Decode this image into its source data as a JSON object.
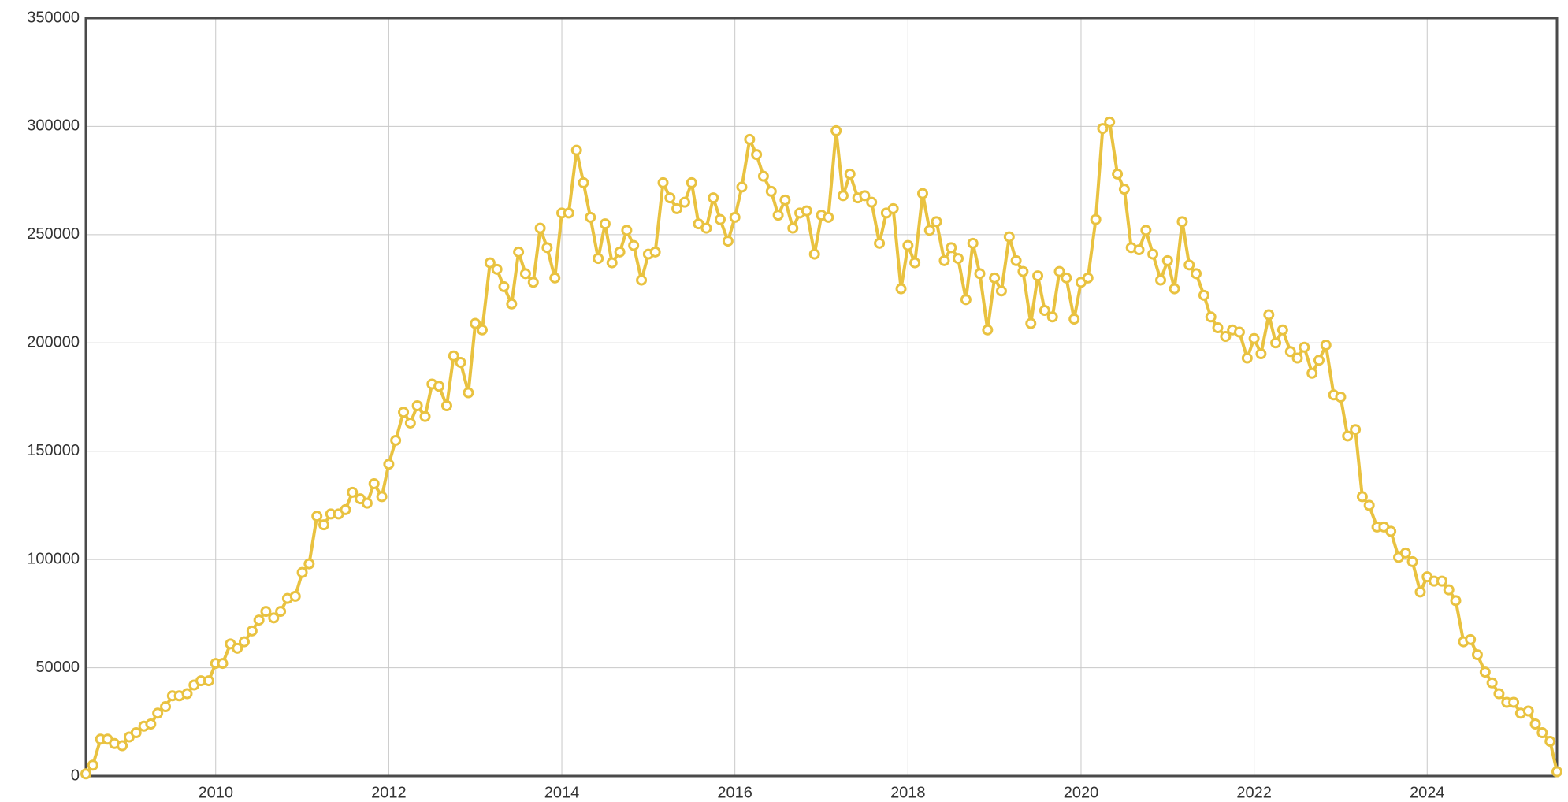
{
  "chart_data": {
    "type": "line",
    "x": [
      2008.5,
      2008.58,
      2008.67,
      2008.75,
      2008.83,
      2008.92,
      2009,
      2009.08,
      2009.17,
      2009.25,
      2009.33,
      2009.42,
      2009.5,
      2009.58,
      2009.67,
      2009.75,
      2009.83,
      2009.92,
      2010,
      2010.08,
      2010.17,
      2010.25,
      2010.33,
      2010.42,
      2010.5,
      2010.58,
      2010.67,
      2010.75,
      2010.83,
      2010.92,
      2011,
      2011.08,
      2011.17,
      2011.25,
      2011.33,
      2011.42,
      2011.5,
      2011.58,
      2011.67,
      2011.75,
      2011.83,
      2011.92,
      2012,
      2012.08,
      2012.17,
      2012.25,
      2012.33,
      2012.42,
      2012.5,
      2012.58,
      2012.67,
      2012.75,
      2012.83,
      2012.92,
      2013,
      2013.08,
      2013.17,
      2013.25,
      2013.33,
      2013.42,
      2013.5,
      2013.58,
      2013.67,
      2013.75,
      2013.83,
      2013.92,
      2014,
      2014.08,
      2014.17,
      2014.25,
      2014.33,
      2014.42,
      2014.5,
      2014.58,
      2014.67,
      2014.75,
      2014.83,
      2014.92,
      2015,
      2015.08,
      2015.17,
      2015.25,
      2015.33,
      2015.42,
      2015.5,
      2015.58,
      2015.67,
      2015.75,
      2015.83,
      2015.92,
      2016,
      2016.08,
      2016.17,
      2016.25,
      2016.33,
      2016.42,
      2016.5,
      2016.58,
      2016.67,
      2016.75,
      2016.83,
      2016.92,
      2017,
      2017.08,
      2017.17,
      2017.25,
      2017.33,
      2017.42,
      2017.5,
      2017.58,
      2017.67,
      2017.75,
      2017.83,
      2017.92,
      2018,
      2018.08,
      2018.17,
      2018.25,
      2018.33,
      2018.42,
      2018.5,
      2018.58,
      2018.67,
      2018.75,
      2018.83,
      2018.92,
      2019,
      2019.08,
      2019.17,
      2019.25,
      2019.33,
      2019.42,
      2019.5,
      2019.58,
      2019.67,
      2019.75,
      2019.83,
      2019.92,
      2020,
      2020.08,
      2020.17,
      2020.25,
      2020.33,
      2020.42,
      2020.5,
      2020.58,
      2020.67,
      2020.75,
      2020.83,
      2020.92,
      2021,
      2021.08,
      2021.17,
      2021.25,
      2021.33,
      2021.42,
      2021.5,
      2021.58,
      2021.67,
      2021.75,
      2021.83,
      2021.92,
      2022,
      2022.08,
      2022.17,
      2022.25,
      2022.33,
      2022.42,
      2022.5,
      2022.58,
      2022.67,
      2022.75,
      2022.83,
      2022.92,
      2023,
      2023.08,
      2023.17,
      2023.25,
      2023.33,
      2023.42,
      2023.5,
      2023.58,
      2023.67,
      2023.75,
      2023.83,
      2023.92,
      2024,
      2024.08,
      2024.17,
      2024.25,
      2024.33,
      2024.42,
      2024.5,
      2024.58,
      2024.67,
      2024.75,
      2024.83,
      2024.92,
      2025,
      2025.08,
      2025.17,
      2025.25,
      2025.33,
      2025.42,
      2025.5
    ],
    "series": [
      {
        "color": "#e9c240",
        "values": [
          1000,
          5000,
          17000,
          17000,
          15000,
          14000,
          18000,
          20000,
          23000,
          24000,
          29000,
          32000,
          37000,
          37000,
          38000,
          42000,
          44000,
          44000,
          52000,
          52000,
          61000,
          59000,
          62000,
          67000,
          72000,
          76000,
          73000,
          76000,
          82000,
          83000,
          94000,
          98000,
          120000,
          116000,
          121000,
          121000,
          123000,
          131000,
          128000,
          126000,
          135000,
          129000,
          144000,
          155000,
          168000,
          163000,
          171000,
          166000,
          181000,
          180000,
          171000,
          194000,
          191000,
          177000,
          209000,
          206000,
          237000,
          234000,
          226000,
          218000,
          242000,
          232000,
          228000,
          253000,
          244000,
          230000,
          260000,
          260000,
          289000,
          274000,
          258000,
          239000,
          255000,
          237000,
          242000,
          252000,
          245000,
          229000,
          241000,
          242000,
          274000,
          267000,
          262000,
          265000,
          274000,
          255000,
          253000,
          267000,
          257000,
          247000,
          258000,
          272000,
          294000,
          287000,
          277000,
          270000,
          259000,
          266000,
          253000,
          260000,
          261000,
          241000,
          259000,
          258000,
          298000,
          268000,
          278000,
          267000,
          268000,
          265000,
          246000,
          260000,
          262000,
          225000,
          245000,
          237000,
          269000,
          252000,
          256000,
          238000,
          244000,
          239000,
          220000,
          246000,
          232000,
          206000,
          230000,
          224000,
          249000,
          238000,
          233000,
          209000,
          231000,
          215000,
          212000,
          233000,
          230000,
          211000,
          228000,
          230000,
          257000,
          299000,
          302000,
          278000,
          271000,
          244000,
          243000,
          252000,
          241000,
          229000,
          238000,
          225000,
          256000,
          236000,
          232000,
          222000,
          212000,
          207000,
          203000,
          206000,
          205000,
          193000,
          202000,
          195000,
          213000,
          200000,
          206000,
          196000,
          193000,
          198000,
          186000,
          192000,
          199000,
          176000,
          175000,
          157000,
          160000,
          129000,
          125000,
          115000,
          115000,
          113000,
          101000,
          103000,
          99000,
          85000,
          92000,
          90000,
          90000,
          86000,
          81000,
          62000,
          63000,
          56000,
          48000,
          43000,
          38000,
          34000,
          34000,
          29000,
          30000,
          24000,
          20000,
          16000,
          2000
        ]
      }
    ],
    "xlim": [
      2008.5,
      2025.5
    ],
    "xticks": [
      2010,
      2012,
      2014,
      2016,
      2018,
      2020,
      2022,
      2024
    ],
    "ylim": [
      0,
      350000
    ],
    "yticks": [
      0,
      50000,
      100000,
      150000,
      200000,
      250000,
      300000,
      350000
    ],
    "grid": true
  }
}
